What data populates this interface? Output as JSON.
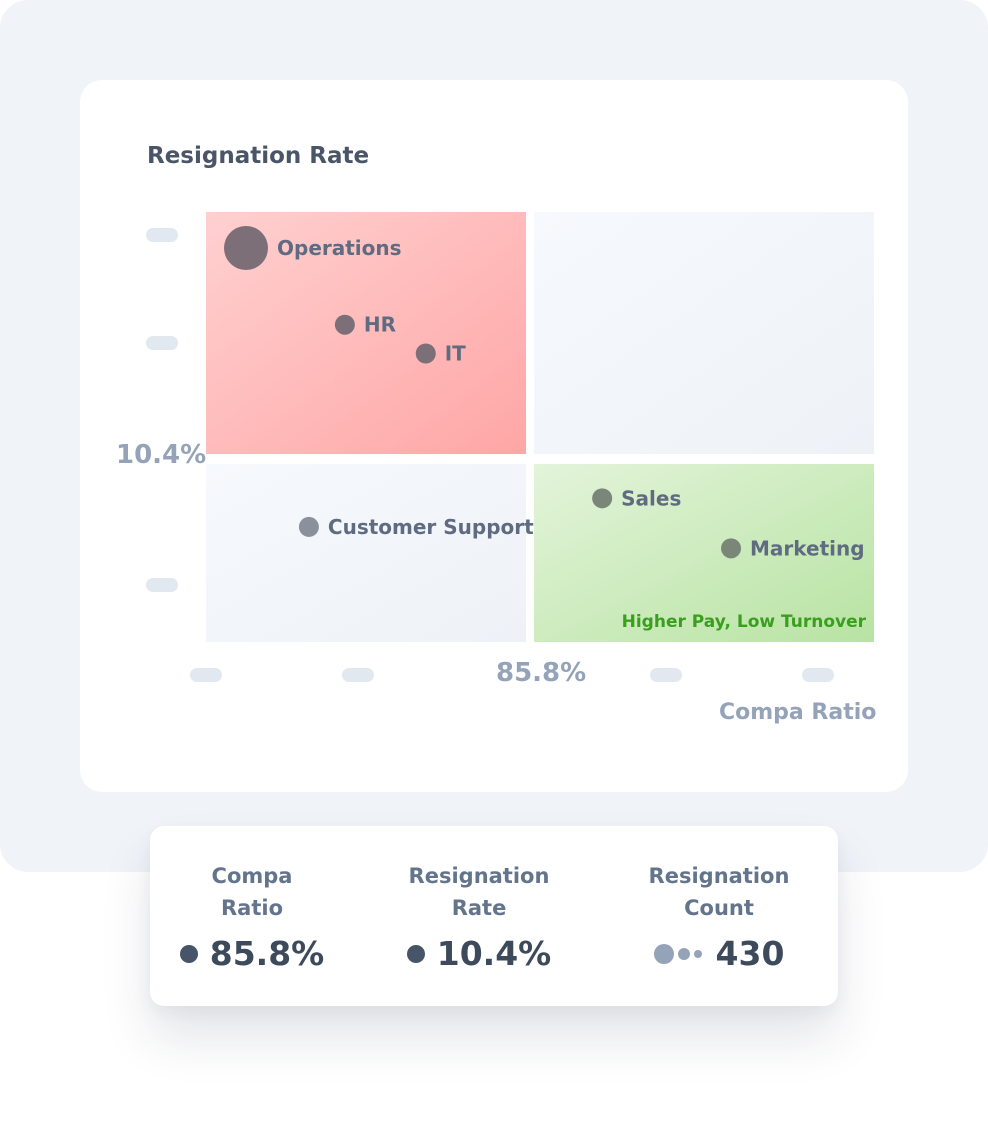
{
  "chart_data": {
    "type": "scatter",
    "title": "Resignation Rate",
    "xlabel": "Compa Ratio",
    "ylabel": "Resignation Rate",
    "x_median": 85.8,
    "y_median": 10.4,
    "x_median_label": "85.8%",
    "y_median_label": "10.4%",
    "quadrant_annotation": "Higher Pay, Low Turnover",
    "colors": {
      "high_risk": "#ffb0b0",
      "favorable": "#c3e8b0",
      "neutral": "#eef2f7",
      "annotation": "#3a9e1e"
    },
    "points": [
      {
        "label": "Operations",
        "x": 70.0,
        "y": 17.0,
        "size": 4,
        "color": "#7d6f78"
      },
      {
        "label": "HR",
        "x": 75.5,
        "y": 14.6,
        "size": 2,
        "color": "#7d6f78"
      },
      {
        "label": "IT",
        "x": 80.0,
        "y": 13.7,
        "size": 2,
        "color": "#7d6f78"
      },
      {
        "label": "Customer Support",
        "x": 73.5,
        "y": 8.5,
        "size": 2,
        "color": "#8a909c"
      },
      {
        "label": "Sales",
        "x": 90.0,
        "y": 9.3,
        "size": 2,
        "color": "#7a8778"
      },
      {
        "label": "Marketing",
        "x": 97.5,
        "y": 7.9,
        "size": 2,
        "color": "#7a8778"
      }
    ]
  },
  "legend": {
    "compa": {
      "label": "Compa\nRatio",
      "value": "85.8%"
    },
    "rate": {
      "label": "Resignation\nRate",
      "value": "10.4%"
    },
    "count": {
      "label": "Resignation\nCount",
      "value": "430"
    }
  }
}
